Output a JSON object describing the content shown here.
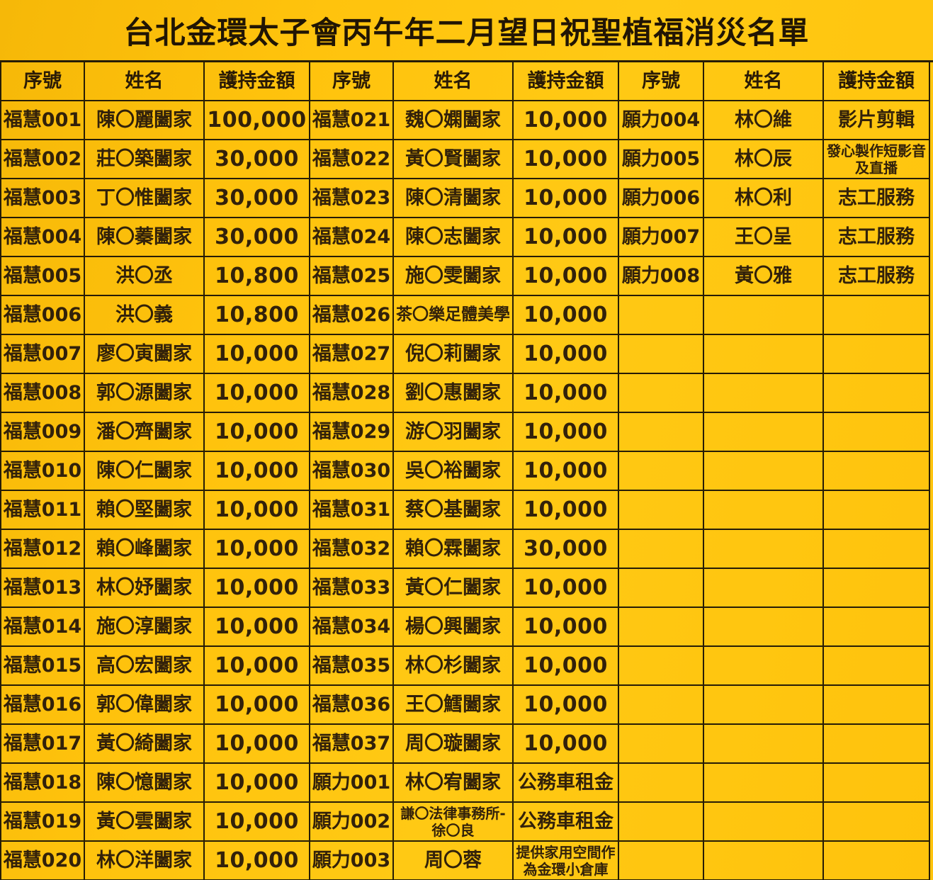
{
  "title": "台北金環太子會丙午年二月望日祝聖植福消災名單",
  "columns": [
    "序號",
    "姓名",
    "護持金額"
  ],
  "colors": {
    "background": "#ffc30d",
    "border": "#261c06",
    "text": "#32210a",
    "title_text": "#211504"
  },
  "groups": [
    {
      "name": "group-1",
      "rows": [
        {
          "serial": "福慧001",
          "name": "陳〇麗闔家",
          "amount": "100,000"
        },
        {
          "serial": "福慧002",
          "name": "莊〇築闔家",
          "amount": "30,000"
        },
        {
          "serial": "福慧003",
          "name": "丁〇惟闔家",
          "amount": "30,000"
        },
        {
          "serial": "福慧004",
          "name": "陳〇蓁闔家",
          "amount": "30,000"
        },
        {
          "serial": "福慧005",
          "name": "洪〇丞",
          "amount": "10,800"
        },
        {
          "serial": "福慧006",
          "name": "洪〇義",
          "amount": "10,800"
        },
        {
          "serial": "福慧007",
          "name": "廖〇寅闔家",
          "amount": "10,000"
        },
        {
          "serial": "福慧008",
          "name": "郭〇源闔家",
          "amount": "10,000"
        },
        {
          "serial": "福慧009",
          "name": "潘〇齊闔家",
          "amount": "10,000"
        },
        {
          "serial": "福慧010",
          "name": "陳〇仁闔家",
          "amount": "10,000"
        },
        {
          "serial": "福慧011",
          "name": "賴〇堅闔家",
          "amount": "10,000"
        },
        {
          "serial": "福慧012",
          "name": "賴〇峰闔家",
          "amount": "10,000"
        },
        {
          "serial": "福慧013",
          "name": "林〇妤闔家",
          "amount": "10,000"
        },
        {
          "serial": "福慧014",
          "name": "施〇淳闔家",
          "amount": "10,000"
        },
        {
          "serial": "福慧015",
          "name": "高〇宏闔家",
          "amount": "10,000"
        },
        {
          "serial": "福慧016",
          "name": "郭〇偉闔家",
          "amount": "10,000"
        },
        {
          "serial": "福慧017",
          "name": "黃〇綺闔家",
          "amount": "10,000"
        },
        {
          "serial": "福慧018",
          "name": "陳〇憶闔家",
          "amount": "10,000"
        },
        {
          "serial": "福慧019",
          "name": "黃〇雲闔家",
          "amount": "10,000"
        },
        {
          "serial": "福慧020",
          "name": "林〇洋闔家",
          "amount": "10,000"
        }
      ]
    },
    {
      "name": "group-2",
      "rows": [
        {
          "serial": "福慧021",
          "name": "魏〇嫻闔家",
          "amount": "10,000"
        },
        {
          "serial": "福慧022",
          "name": "黃〇賢闔家",
          "amount": "10,000"
        },
        {
          "serial": "福慧023",
          "name": "陳〇清闔家",
          "amount": "10,000"
        },
        {
          "serial": "福慧024",
          "name": "陳〇志闔家",
          "amount": "10,000"
        },
        {
          "serial": "福慧025",
          "name": "施〇雯闔家",
          "amount": "10,000"
        },
        {
          "serial": "福慧026",
          "name": "茶〇樂足體美學",
          "amount": "10,000"
        },
        {
          "serial": "福慧027",
          "name": "倪〇莉闔家",
          "amount": "10,000"
        },
        {
          "serial": "福慧028",
          "name": "劉〇惠闔家",
          "amount": "10,000"
        },
        {
          "serial": "福慧029",
          "name": "游〇羽闔家",
          "amount": "10,000"
        },
        {
          "serial": "福慧030",
          "name": "吳〇裕闔家",
          "amount": "10,000"
        },
        {
          "serial": "福慧031",
          "name": "蔡〇基闔家",
          "amount": "10,000"
        },
        {
          "serial": "福慧032",
          "name": "賴〇霖闔家",
          "amount": "30,000"
        },
        {
          "serial": "福慧033",
          "name": "黃〇仁闔家",
          "amount": "10,000"
        },
        {
          "serial": "福慧034",
          "name": "楊〇興闔家",
          "amount": "10,000"
        },
        {
          "serial": "福慧035",
          "name": "林〇杉闔家",
          "amount": "10,000"
        },
        {
          "serial": "福慧036",
          "name": "王〇鱈闔家",
          "amount": "10,000"
        },
        {
          "serial": "福慧037",
          "name": "周〇璇闔家",
          "amount": "10,000"
        },
        {
          "serial": "願力001",
          "name": "林〇宥闔家",
          "amount": "公務車租金"
        },
        {
          "serial": "願力002",
          "name": "謙〇法律事務所-徐〇良",
          "amount": "公務車租金"
        },
        {
          "serial": "願力003",
          "name": "周〇蓉",
          "amount": "提供家用空間作為金環小倉庫"
        }
      ]
    },
    {
      "name": "group-3",
      "rows": [
        {
          "serial": "願力004",
          "name": "林〇維",
          "amount": "影片剪輯"
        },
        {
          "serial": "願力005",
          "name": "林〇辰",
          "amount": "發心製作短影音及直播"
        },
        {
          "serial": "願力006",
          "name": "林〇利",
          "amount": "志工服務"
        },
        {
          "serial": "願力007",
          "name": "王〇呈",
          "amount": "志工服務"
        },
        {
          "serial": "願力008",
          "name": "黃〇雅",
          "amount": "志工服務"
        },
        {
          "serial": "",
          "name": "",
          "amount": ""
        },
        {
          "serial": "",
          "name": "",
          "amount": ""
        },
        {
          "serial": "",
          "name": "",
          "amount": ""
        },
        {
          "serial": "",
          "name": "",
          "amount": ""
        },
        {
          "serial": "",
          "name": "",
          "amount": ""
        },
        {
          "serial": "",
          "name": "",
          "amount": ""
        },
        {
          "serial": "",
          "name": "",
          "amount": ""
        },
        {
          "serial": "",
          "name": "",
          "amount": ""
        },
        {
          "serial": "",
          "name": "",
          "amount": ""
        },
        {
          "serial": "",
          "name": "",
          "amount": ""
        },
        {
          "serial": "",
          "name": "",
          "amount": ""
        },
        {
          "serial": "",
          "name": "",
          "amount": ""
        },
        {
          "serial": "",
          "name": "",
          "amount": ""
        },
        {
          "serial": "",
          "name": "",
          "amount": ""
        },
        {
          "serial": "",
          "name": "",
          "amount": ""
        }
      ]
    }
  ]
}
